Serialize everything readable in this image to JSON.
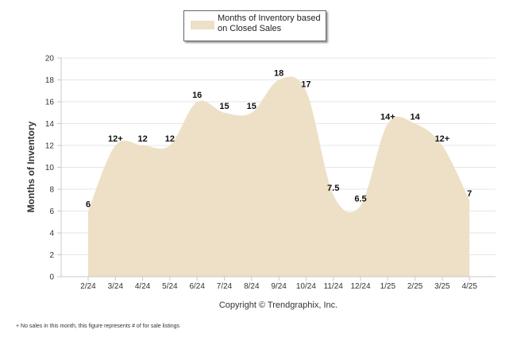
{
  "chart_data": {
    "type": "area",
    "categories": [
      "2/24",
      "3/24",
      "4/24",
      "5/24",
      "6/24",
      "7/24",
      "8/24",
      "9/24",
      "10/24",
      "11/24",
      "12/24",
      "1/25",
      "2/25",
      "3/25",
      "4/25"
    ],
    "series": [
      {
        "name": "Months of Inventory based on Closed Sales",
        "values": [
          6,
          12,
          12,
          12,
          16,
          15,
          15,
          18,
          17,
          7.5,
          6.5,
          14,
          14,
          12,
          7
        ],
        "labels": [
          "6",
          "12+",
          "12",
          "12",
          "16",
          "15",
          "15",
          "18",
          "17",
          "7.5",
          "6.5",
          "14+",
          "14",
          "12+",
          "7"
        ]
      }
    ],
    "xlabel": "",
    "ylabel": "Months of Inventory",
    "ylim": [
      0,
      20
    ],
    "yticks": [
      0,
      2,
      4,
      6,
      8,
      10,
      12,
      14,
      16,
      18,
      20
    ],
    "grid": true,
    "legend_position": "top-center"
  },
  "colors": {
    "area_fill": "#ede0c6",
    "grid": "#e6e6e6",
    "axis": "#c8c8c8",
    "text": "#333333"
  },
  "copyright": "Copyright © Trendgraphix, Inc.",
  "footnote": "+  No sales in this month, this figure represents # of for sale listings"
}
